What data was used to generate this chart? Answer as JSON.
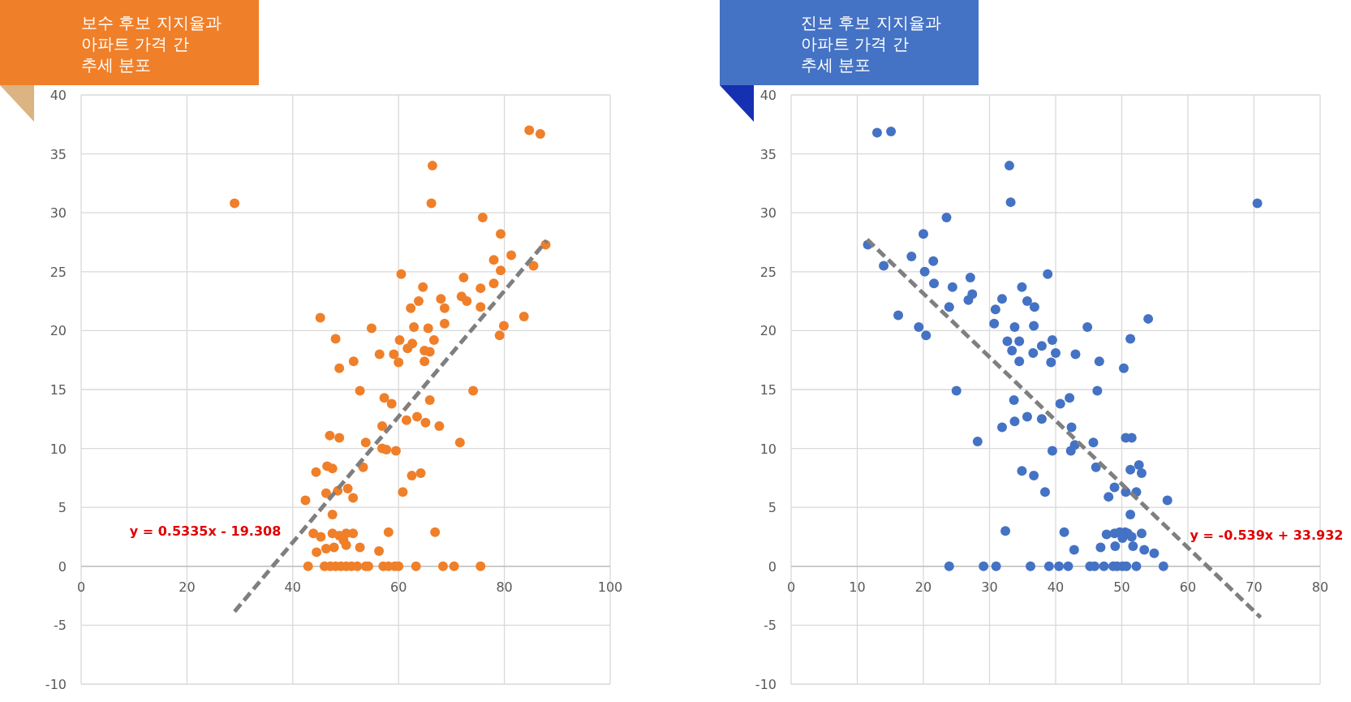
{
  "chart_data": [
    {
      "type": "scatter",
      "title": "보수 후보 지지율과\n아파트 가격 간\n추세 분포",
      "xlim": [
        0,
        100
      ],
      "ylim": [
        -10,
        40
      ],
      "xticks": [
        0,
        20,
        40,
        60,
        80,
        100
      ],
      "yticks": [
        -10,
        -5,
        0,
        5,
        10,
        15,
        20,
        25,
        30,
        35,
        40
      ],
      "grid": true,
      "marker": "circle",
      "series": [
        {
          "type": "scatter",
          "color": "#f07f29",
          "x": [
            29.0,
            84.7,
            86.8,
            66.4,
            66.2,
            75.9,
            79.3,
            87.8,
            81.3,
            78.0,
            79.3,
            85.5,
            60.5,
            64.6,
            72.3,
            75.5,
            78.0,
            63.8,
            62.3,
            68.0,
            68.7,
            71.9,
            72.9,
            75.5,
            45.2,
            83.7,
            54.9,
            62.9,
            65.6,
            68.7,
            79.9,
            79.1,
            48.1,
            60.2,
            62.6,
            61.7,
            66.7,
            64.9,
            65.9,
            56.4,
            59.1,
            60.0,
            64.9,
            51.5,
            48.8,
            52.7,
            74.1,
            57.3,
            65.9,
            58.7,
            61.5,
            63.5,
            65.1,
            56.9,
            67.7,
            47.0,
            48.8,
            53.8,
            71.6,
            56.9,
            57.7,
            59.5,
            44.4,
            46.5,
            47.5,
            53.3,
            64.2,
            62.5,
            46.3,
            48.5,
            50.4,
            51.4,
            60.8,
            42.4,
            47.5,
            43.9,
            45.3,
            47.5,
            48.8,
            50.1,
            51.4,
            49.6,
            58.1,
            66.9,
            44.5,
            46.3,
            47.8,
            50.1,
            52.7,
            56.3,
            42.9,
            46.0,
            47.1,
            48.1,
            49.1,
            50.1,
            51.1,
            52.2,
            53.8,
            54.3,
            57.1,
            58.1,
            59.3,
            60.0,
            63.3,
            68.4,
            70.5,
            75.5
          ],
          "values": [
            30.8,
            37.0,
            36.7,
            34.0,
            30.8,
            29.6,
            28.2,
            27.3,
            26.4,
            26.0,
            25.1,
            25.5,
            24.8,
            23.7,
            24.5,
            23.6,
            24.0,
            22.5,
            21.9,
            22.7,
            21.9,
            22.9,
            22.5,
            22.0,
            21.1,
            21.2,
            20.2,
            20.3,
            20.2,
            20.6,
            20.4,
            19.6,
            19.3,
            19.2,
            18.9,
            18.5,
            19.2,
            18.3,
            18.2,
            18.0,
            18.0,
            17.3,
            17.4,
            17.4,
            16.8,
            14.9,
            14.9,
            14.3,
            14.1,
            13.8,
            12.4,
            12.7,
            12.2,
            11.9,
            11.9,
            11.1,
            10.9,
            10.5,
            10.5,
            10.0,
            9.9,
            9.8,
            8.0,
            8.5,
            8.3,
            8.4,
            7.9,
            7.7,
            6.2,
            6.4,
            6.6,
            5.8,
            6.3,
            5.6,
            4.4,
            2.8,
            2.5,
            2.8,
            2.6,
            2.8,
            2.8,
            2.2,
            2.9,
            2.9,
            1.2,
            1.5,
            1.6,
            1.8,
            1.6,
            1.3,
            0,
            0,
            0,
            0,
            0,
            0,
            0,
            0,
            0,
            0,
            0,
            0,
            0,
            0,
            0,
            0,
            0,
            0
          ]
        },
        {
          "type": "line",
          "color": "#7f7f7f",
          "line_style": "dashed",
          "marker": "none",
          "x": [
            29,
            88
          ],
          "values": [
            -3.84,
            27.64
          ]
        }
      ],
      "annotations": [
        "y = 0.5335x - 19.308"
      ]
    },
    {
      "type": "scatter",
      "title": "진보 후보 지지율과\n아파트 가격 간\n추세 분포",
      "xlim": [
        0,
        80
      ],
      "ylim": [
        -10,
        40
      ],
      "xticks": [
        0,
        10,
        20,
        30,
        40,
        50,
        60,
        70,
        80
      ],
      "yticks": [
        -10,
        -5,
        0,
        5,
        10,
        15,
        20,
        25,
        30,
        35,
        40
      ],
      "grid": true,
      "marker": "circle",
      "series": [
        {
          "type": "scatter",
          "color": "#4472c4",
          "x": [
            13.0,
            15.1,
            33.0,
            33.2,
            23.5,
            20.0,
            11.6,
            18.2,
            21.5,
            14.0,
            20.2,
            38.8,
            27.1,
            21.6,
            34.9,
            24.4,
            27.4,
            26.8,
            31.9,
            35.7,
            36.8,
            23.9,
            30.9,
            16.2,
            54.0,
            30.7,
            33.8,
            36.7,
            44.8,
            19.3,
            20.4,
            51.3,
            32.7,
            34.5,
            39.5,
            37.9,
            33.4,
            40.0,
            36.6,
            43.0,
            34.5,
            39.3,
            46.6,
            50.3,
            25.0,
            46.3,
            33.7,
            42.1,
            40.7,
            35.7,
            33.8,
            37.9,
            31.9,
            42.4,
            28.2,
            50.6,
            51.5,
            45.7,
            42.9,
            42.3,
            39.5,
            46.1,
            52.6,
            51.3,
            53.0,
            34.9,
            36.7,
            38.4,
            48.9,
            50.6,
            52.2,
            48.0,
            56.9,
            51.3,
            32.4,
            41.3,
            47.7,
            48.9,
            49.7,
            50.5,
            50.9,
            50.1,
            51.5,
            53.0,
            42.8,
            46.8,
            49.0,
            51.7,
            53.4,
            54.9,
            23.9,
            29.1,
            31.0,
            36.2,
            39.0,
            40.5,
            41.9,
            45.2,
            45.9,
            47.3,
            48.7,
            49.3,
            50.1,
            50.7,
            52.2,
            56.3,
            70.5
          ],
          "values": [
            36.8,
            36.9,
            34.0,
            30.9,
            29.6,
            28.2,
            27.3,
            26.3,
            25.9,
            25.5,
            25.0,
            24.8,
            24.5,
            24.0,
            23.7,
            23.7,
            23.1,
            22.6,
            22.7,
            22.5,
            22.0,
            22.0,
            21.8,
            21.3,
            21.0,
            20.6,
            20.3,
            20.4,
            20.3,
            20.3,
            19.6,
            19.3,
            19.1,
            19.1,
            19.2,
            18.7,
            18.3,
            18.1,
            18.1,
            18.0,
            17.4,
            17.3,
            17.4,
            16.8,
            14.9,
            14.9,
            14.1,
            14.3,
            13.8,
            12.7,
            12.3,
            12.5,
            11.8,
            11.8,
            10.6,
            10.9,
            10.9,
            10.5,
            10.3,
            9.8,
            9.8,
            8.4,
            8.6,
            8.2,
            7.9,
            8.1,
            7.7,
            6.3,
            6.7,
            6.3,
            6.3,
            5.9,
            5.6,
            4.4,
            3.0,
            2.9,
            2.7,
            2.8,
            2.9,
            2.9,
            2.8,
            2.4,
            2.5,
            2.8,
            1.4,
            1.6,
            1.7,
            1.7,
            1.4,
            1.1,
            0,
            0,
            0,
            0,
            0,
            0,
            0,
            0,
            0,
            0,
            0,
            0,
            0,
            0,
            0,
            0,
            30.8
          ]
        },
        {
          "type": "line",
          "color": "#7f7f7f",
          "line_style": "dashed",
          "marker": "none",
          "x": [
            11.5,
            71
          ],
          "values": [
            27.73,
            -4.34
          ]
        }
      ],
      "annotations": [
        "y = -0.539x + 33.932"
      ]
    }
  ]
}
